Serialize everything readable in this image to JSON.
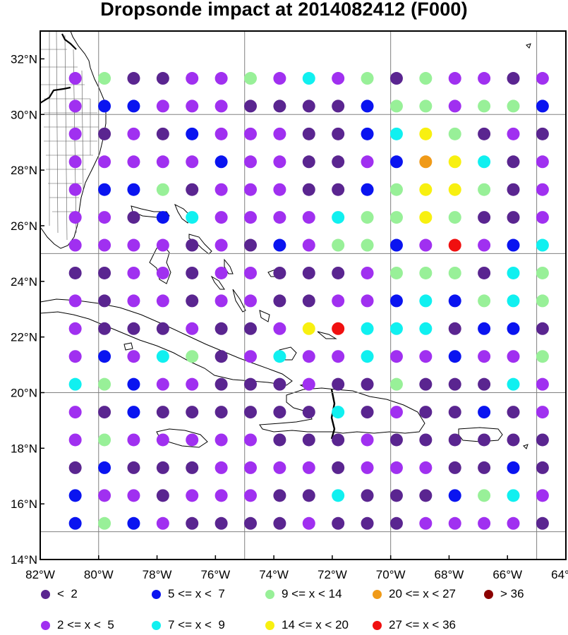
{
  "title": "Dropsonde impact at 2014082412 (F000)",
  "map": {
    "lon_range": [
      -82,
      -64
    ],
    "lat_range": [
      14,
      33
    ],
    "lat_ticks": [
      {
        "value": 32,
        "label": "32°N"
      },
      {
        "value": 30,
        "label": "30°N"
      },
      {
        "value": 28,
        "label": "28°N"
      },
      {
        "value": 26,
        "label": "26°N"
      },
      {
        "value": 24,
        "label": "24°N"
      },
      {
        "value": 22,
        "label": "22°N"
      },
      {
        "value": 20,
        "label": "20°N"
      },
      {
        "value": 18,
        "label": "18°N"
      },
      {
        "value": 16,
        "label": "16°N"
      },
      {
        "value": 14,
        "label": "14°N"
      }
    ],
    "lon_ticks": [
      {
        "value": -82,
        "label": "82°W"
      },
      {
        "value": -80,
        "label": "80°W"
      },
      {
        "value": -78,
        "label": "78°W"
      },
      {
        "value": -76,
        "label": "76°W"
      },
      {
        "value": -74,
        "label": "74°W"
      },
      {
        "value": -72,
        "label": "72°W"
      },
      {
        "value": -70,
        "label": "70°W"
      },
      {
        "value": -68,
        "label": "68°W"
      },
      {
        "value": -66,
        "label": "66°W"
      },
      {
        "value": -64,
        "label": "64°W"
      }
    ],
    "gridlines_lon": [
      -80,
      -75,
      -70,
      -65
    ],
    "gridlines_lat": [
      30,
      25,
      20,
      15
    ],
    "land_color": "#ffffff",
    "coast_color": "#000000",
    "grid_color": "#808080"
  },
  "legend": {
    "classes": [
      {
        "key": "a",
        "label": "<  2",
        "color": "#5a2590"
      },
      {
        "key": "b",
        "label": "2 <= x <  5",
        "color": "#a030f0"
      },
      {
        "key": "c",
        "label": "5 <= x <  7",
        "color": "#0a14f0"
      },
      {
        "key": "d",
        "label": "7 <= x <  9",
        "color": "#10f0f0"
      },
      {
        "key": "e",
        "label": "9 <= x < 14",
        "color": "#98f098"
      },
      {
        "key": "f",
        "label": "14 <= x < 20",
        "color": "#f8f010"
      },
      {
        "key": "g",
        "label": "20 <= x < 27",
        "color": "#f09a18"
      },
      {
        "key": "h",
        "label": "27 <= x < 36",
        "color": "#f01010"
      },
      {
        "key": "i",
        "label": "> 36",
        "color": "#8b0000"
      }
    ]
  },
  "chart_data": {
    "type": "scatter",
    "title": "Dropsonde impact at 2014082412 (F000)",
    "x_label": "",
    "y_label": "",
    "x_values_lon": [
      -80.8,
      -79.8,
      -78.8,
      -77.8,
      -76.8,
      -75.8,
      -74.8,
      -73.8,
      -72.8,
      -71.8,
      -70.8,
      -69.8,
      -68.8,
      -67.8,
      -66.8,
      -65.8,
      -64.8
    ],
    "y_values_lat": [
      31.3,
      30.3,
      29.3,
      28.3,
      27.3,
      26.3,
      25.3,
      24.3,
      23.3,
      22.3,
      21.3,
      20.3,
      19.3,
      18.3,
      17.3,
      16.3,
      15.3
    ],
    "class_grid": [
      "beaabbebdbeaebbab",
      "bccbbbaaaaceebeec",
      "babaCbbbaacdfeaba",
      "bbbbbcbbaabcgfdab",
      "bcceabbbaaceffeab",
      "bbacdbbbbdeefeaab",
      "bbbbabacbeecbhbcd",
      "aabbabbaaabeeeade",
      "babbabbaabbcdcede",
      "baaabaabfhdddacca",
      "bcbdeabdbbdbbcbbe",
      "decbbaaabaaeaaadb",
      "bacaaaaaadabaacab",
      "bebbbbbaaabaaaaaa",
      "acaaabbbbabbbaaca",
      "cbbabbbaadaaacedb",
      "cecbaaaabaaabbbba"
    ]
  }
}
